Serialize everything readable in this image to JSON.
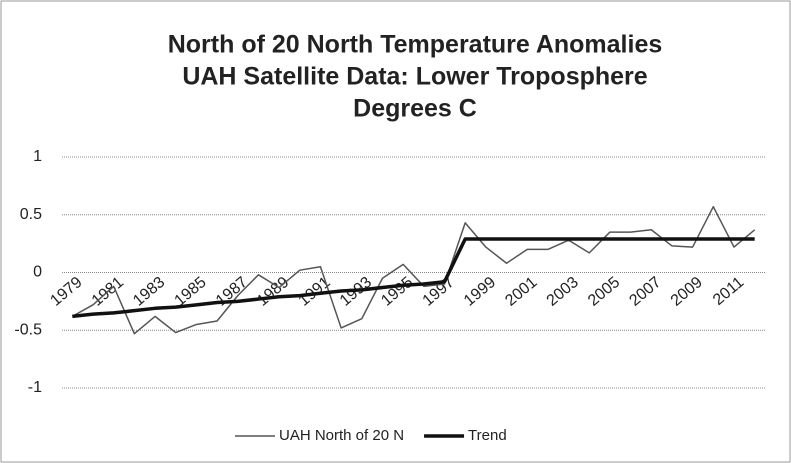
{
  "chart_data": {
    "type": "line",
    "title": [
      "North of 20 North Temperature  Anomalies",
      "UAH Satellite Data: Lower Troposphere",
      "Degrees C"
    ],
    "categories": [
      "1979",
      null,
      "1981",
      null,
      "1983",
      null,
      "1985",
      null,
      "1987",
      null,
      "1989",
      null,
      "1991",
      null,
      "1993",
      null,
      "1995",
      null,
      "1997",
      null,
      "1999",
      null,
      "2001",
      null,
      "2003",
      null,
      "2005",
      null,
      "2007",
      null,
      "2009",
      null,
      "2011",
      null
    ],
    "series": [
      {
        "name": "UAH North of 20 N",
        "color": "#555555",
        "values": [
          -0.38,
          -0.28,
          -0.12,
          -0.53,
          -0.38,
          -0.52,
          -0.45,
          -0.42,
          -0.2,
          -0.02,
          -0.13,
          0.02,
          0.05,
          -0.48,
          -0.4,
          -0.05,
          0.07,
          -0.12,
          -0.1,
          0.43,
          0.22,
          0.08,
          0.2,
          0.2,
          0.28,
          0.17,
          0.35,
          0.35,
          0.37,
          0.23,
          0.22,
          0.57,
          0.22,
          0.37
        ]
      },
      {
        "name": "Trend",
        "color": "#111111",
        "values": [
          -0.38,
          -0.36,
          -0.35,
          -0.33,
          -0.31,
          -0.3,
          -0.28,
          -0.26,
          -0.25,
          -0.23,
          -0.21,
          -0.2,
          -0.18,
          -0.16,
          -0.15,
          -0.13,
          -0.11,
          -0.1,
          -0.08,
          0.29,
          0.29,
          0.29,
          0.29,
          0.29,
          0.29,
          0.29,
          0.29,
          0.29,
          0.29,
          0.29,
          0.29,
          0.29,
          0.29,
          0.29
        ]
      }
    ],
    "ylim": [
      -1,
      1
    ],
    "yticks": [
      -1,
      -0.5,
      0,
      0.5,
      1
    ],
    "grid": true,
    "legend": "bottom"
  }
}
